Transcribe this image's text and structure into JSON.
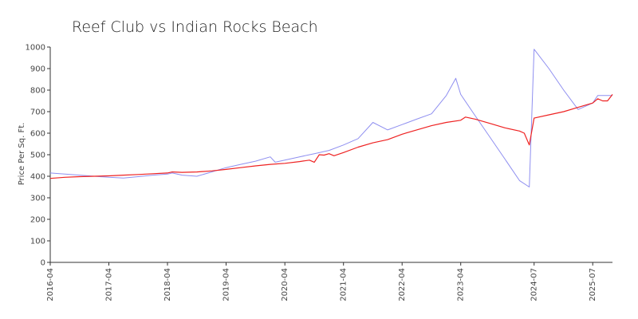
{
  "chart_data": {
    "type": "line",
    "title": "Reef Club vs Indian Rocks Beach",
    "xlabel": "",
    "ylabel": "Price Per Sq. Ft.",
    "ylim": [
      0,
      1000
    ],
    "yticks": [
      0,
      100,
      200,
      300,
      400,
      500,
      600,
      700,
      800,
      900,
      1000
    ],
    "xlim": [
      "2016-04-01",
      "2025-11-01"
    ],
    "xticks": [
      "2016-04",
      "2017-04",
      "2018-04",
      "2019-04",
      "2020-04",
      "2021-04",
      "2022-04",
      "2023-04",
      "2024-07",
      "2025-07"
    ],
    "xtick_dates": [
      "2016-04-01",
      "2017-04-01",
      "2018-04-01",
      "2019-04-01",
      "2020-04-01",
      "2021-04-01",
      "2022-04-01",
      "2023-04-01",
      "2024-07-01",
      "2025-07-01"
    ],
    "grid": false,
    "legend": "none",
    "series": [
      {
        "color": "#8f8ff0",
        "points": [
          [
            "2016-04-01",
            415
          ],
          [
            "2016-07-01",
            410
          ],
          [
            "2016-10-01",
            405
          ],
          [
            "2017-01-01",
            400
          ],
          [
            "2017-04-01",
            395
          ],
          [
            "2017-07-01",
            392
          ],
          [
            "2017-10-01",
            398
          ],
          [
            "2018-01-01",
            405
          ],
          [
            "2018-04-01",
            410
          ],
          [
            "2018-05-01",
            415
          ],
          [
            "2018-07-01",
            405
          ],
          [
            "2018-10-01",
            400
          ],
          [
            "2019-01-01",
            420
          ],
          [
            "2019-04-01",
            440
          ],
          [
            "2019-07-01",
            455
          ],
          [
            "2019-10-01",
            470
          ],
          [
            "2020-01-01",
            490
          ],
          [
            "2020-02-01",
            465
          ],
          [
            "2020-04-01",
            475
          ],
          [
            "2020-07-01",
            490
          ],
          [
            "2020-10-01",
            505
          ],
          [
            "2021-01-01",
            520
          ],
          [
            "2021-04-01",
            545
          ],
          [
            "2021-07-01",
            575
          ],
          [
            "2021-10-01",
            650
          ],
          [
            "2022-01-01",
            615
          ],
          [
            "2022-04-01",
            640
          ],
          [
            "2022-07-01",
            665
          ],
          [
            "2022-10-01",
            690
          ],
          [
            "2023-01-01",
            775
          ],
          [
            "2023-03-01",
            855
          ],
          [
            "2023-04-01",
            780
          ],
          [
            "2023-07-01",
            680
          ],
          [
            "2023-10-01",
            580
          ],
          [
            "2024-01-01",
            480
          ],
          [
            "2024-04-01",
            380
          ],
          [
            "2024-06-01",
            350
          ],
          [
            "2024-07-01",
            990
          ],
          [
            "2024-10-01",
            900
          ],
          [
            "2025-01-01",
            800
          ],
          [
            "2025-04-01",
            710
          ],
          [
            "2025-07-01",
            740
          ],
          [
            "2025-08-01",
            775
          ],
          [
            "2025-11-01",
            775
          ]
        ]
      },
      {
        "color": "#ee2222",
        "points": [
          [
            "2016-04-01",
            390
          ],
          [
            "2016-07-01",
            395
          ],
          [
            "2016-10-01",
            398
          ],
          [
            "2017-01-01",
            400
          ],
          [
            "2017-04-01",
            402
          ],
          [
            "2017-07-01",
            405
          ],
          [
            "2017-10-01",
            408
          ],
          [
            "2018-01-01",
            412
          ],
          [
            "2018-04-01",
            415
          ],
          [
            "2018-05-01",
            420
          ],
          [
            "2018-07-01",
            418
          ],
          [
            "2018-10-01",
            420
          ],
          [
            "2019-01-01",
            425
          ],
          [
            "2019-04-01",
            432
          ],
          [
            "2019-07-01",
            440
          ],
          [
            "2019-10-01",
            448
          ],
          [
            "2020-01-01",
            455
          ],
          [
            "2020-04-01",
            460
          ],
          [
            "2020-07-01",
            468
          ],
          [
            "2020-09-01",
            475
          ],
          [
            "2020-10-01",
            465
          ],
          [
            "2020-11-01",
            500
          ],
          [
            "2020-12-01",
            498
          ],
          [
            "2021-01-01",
            505
          ],
          [
            "2021-02-01",
            495
          ],
          [
            "2021-04-01",
            510
          ],
          [
            "2021-07-01",
            535
          ],
          [
            "2021-10-01",
            555
          ],
          [
            "2022-01-01",
            570
          ],
          [
            "2022-04-01",
            595
          ],
          [
            "2022-07-01",
            615
          ],
          [
            "2022-10-01",
            635
          ],
          [
            "2023-01-01",
            650
          ],
          [
            "2023-04-01",
            660
          ],
          [
            "2023-05-01",
            675
          ],
          [
            "2023-07-01",
            665
          ],
          [
            "2023-10-01",
            645
          ],
          [
            "2024-01-01",
            625
          ],
          [
            "2024-04-01",
            610
          ],
          [
            "2024-05-01",
            600
          ],
          [
            "2024-06-01",
            545
          ],
          [
            "2024-07-01",
            670
          ],
          [
            "2024-10-01",
            685
          ],
          [
            "2025-01-01",
            700
          ],
          [
            "2025-04-01",
            720
          ],
          [
            "2025-07-01",
            740
          ],
          [
            "2025-08-01",
            760
          ],
          [
            "2025-09-01",
            750
          ],
          [
            "2025-10-01",
            750
          ],
          [
            "2025-11-01",
            780
          ]
        ]
      }
    ]
  }
}
